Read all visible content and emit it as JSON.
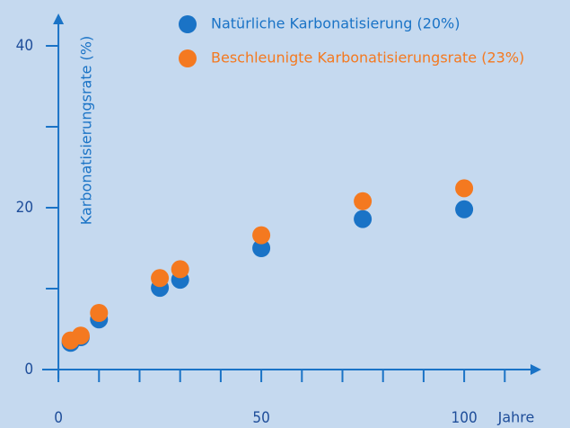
{
  "chart_data": {
    "type": "scatter",
    "x_label": "Jahre",
    "y_label": "Karbonatisierungsrate (%)",
    "series": [
      {
        "name": "Natürliche Karbonatisierung (20%)",
        "color": "#1a73c6",
        "x": [
          3,
          5.5,
          10,
          25,
          30,
          50,
          75,
          100
        ],
        "values": [
          3.3,
          4.0,
          6.2,
          10.1,
          11.1,
          15.0,
          18.6,
          19.8
        ]
      },
      {
        "name": "Beschleunigte Karbonatisierungsrate (23%)",
        "color": "#f47920",
        "x": [
          3,
          5.5,
          10,
          25,
          30,
          50,
          75,
          100
        ],
        "values": [
          3.6,
          4.2,
          7.0,
          11.3,
          12.4,
          16.6,
          20.8,
          22.4
        ]
      }
    ],
    "xlim": [
      -4,
      119
    ],
    "xticks": [
      0,
      50,
      100
    ],
    "xminor_ticks": [
      10,
      20,
      30,
      40,
      60,
      70,
      80,
      90,
      110
    ],
    "ylim": [
      0,
      44
    ],
    "yticks": [
      0,
      20,
      40
    ],
    "yminor_ticks": [
      10,
      30
    ],
    "grid": false,
    "legend_position": "top-right"
  }
}
